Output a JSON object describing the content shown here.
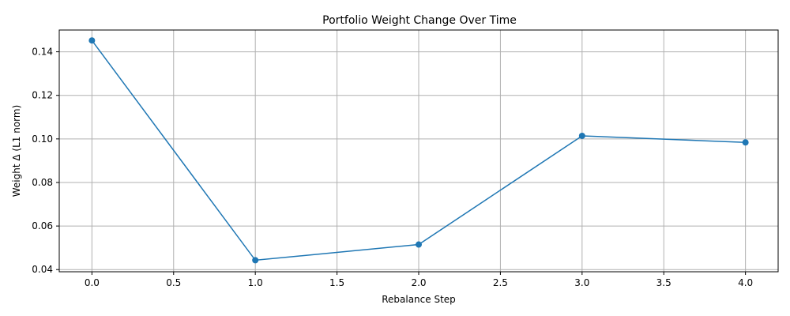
{
  "chart_data": {
    "type": "line",
    "title": "Portfolio Weight Change Over Time",
    "xlabel": "Rebalance Step",
    "ylabel": "Weight Δ (L1 norm)",
    "x": [
      0,
      1,
      2,
      3,
      4
    ],
    "series": [
      {
        "values": [
          0.1452,
          0.0443,
          0.0515,
          0.1014,
          0.0984
        ],
        "color": "#1f77b4",
        "marker": "circle"
      }
    ],
    "xlim": [
      -0.2,
      4.2
    ],
    "ylim": [
      0.039,
      0.15
    ],
    "xticks": [
      "0.0",
      "0.5",
      "1.0",
      "1.5",
      "2.0",
      "2.5",
      "3.0",
      "3.5",
      "4.0"
    ],
    "yticks": [
      "0.04",
      "0.06",
      "0.08",
      "0.10",
      "0.12",
      "0.14"
    ],
    "grid": true,
    "colors": {
      "line": "#1f77b4",
      "grid": "#b0b0b0",
      "axes": "#000000"
    }
  }
}
